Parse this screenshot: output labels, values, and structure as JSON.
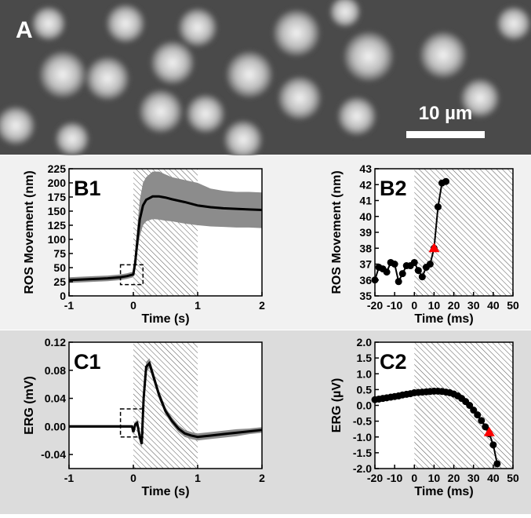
{
  "image": {
    "label": "A",
    "scale_bar_label": "10 µm"
  },
  "chart_data": [
    {
      "type": "line",
      "title": "B1",
      "xlabel": "Time (s)",
      "ylabel": "ROS Movement (nm)",
      "xlim": [
        -1,
        2
      ],
      "xticks": [
        -1,
        0,
        1,
        2
      ],
      "ylim": [
        0,
        225
      ],
      "yticks": [
        0,
        25,
        50,
        75,
        100,
        125,
        150,
        175,
        200,
        225
      ],
      "shaded_x": [
        0,
        1
      ],
      "zoom_box": {
        "x": [
          -0.2,
          0.15
        ],
        "y": [
          20,
          55
        ]
      },
      "x": [
        -1,
        -0.8,
        -0.6,
        -0.4,
        -0.2,
        -0.1,
        0,
        0.03,
        0.06,
        0.1,
        0.15,
        0.2,
        0.3,
        0.4,
        0.5,
        0.6,
        0.8,
        1,
        1.2,
        1.4,
        1.6,
        1.8,
        2
      ],
      "values": [
        28,
        29,
        30,
        31,
        33,
        35,
        38,
        60,
        95,
        135,
        160,
        170,
        176,
        176,
        174,
        171,
        166,
        160,
        157,
        155,
        154,
        153,
        152
      ],
      "upper": [
        33,
        34,
        35,
        36,
        38,
        40,
        43,
        72,
        120,
        170,
        200,
        210,
        220,
        220,
        215,
        210,
        205,
        200,
        190,
        186,
        184,
        184,
        183
      ],
      "lower": [
        23,
        24,
        25,
        26,
        28,
        30,
        33,
        48,
        75,
        105,
        125,
        132,
        136,
        135,
        133,
        132,
        128,
        125,
        123,
        122,
        121,
        121,
        120
      ],
      "color": "#000000",
      "band_color": "#8c8c8c",
      "markers": false
    },
    {
      "type": "line",
      "title": "B2",
      "xlabel": "Time (ms)",
      "ylabel": "ROS Movement (nm)",
      "xlim": [
        -20,
        50
      ],
      "xticks": [
        -20,
        -10,
        0,
        10,
        20,
        30,
        40,
        50
      ],
      "ylim": [
        35,
        43
      ],
      "yticks": [
        35,
        36,
        37,
        38,
        39,
        40,
        41,
        42,
        43
      ],
      "shaded_x": [
        0,
        50
      ],
      "x": [
        -20,
        -18,
        -16,
        -14,
        -12,
        -10,
        -8,
        -6,
        -4,
        -2,
        0,
        2,
        4,
        6,
        8,
        10,
        12,
        14,
        16
      ],
      "values": [
        36.0,
        36.8,
        36.7,
        36.5,
        37.1,
        37.0,
        35.9,
        36.4,
        36.9,
        36.9,
        37.1,
        36.6,
        36.2,
        36.8,
        37.0,
        38.0,
        40.6,
        42.1,
        42.2
      ],
      "color": "#000000",
      "markers": true,
      "onset": {
        "x": 10,
        "y": 38,
        "color": "#ff0000"
      }
    },
    {
      "type": "line",
      "title": "C1",
      "xlabel": "Time (s)",
      "ylabel": "ERG (mV)",
      "xlim": [
        -1,
        2
      ],
      "xticks": [
        -1,
        0,
        1,
        2
      ],
      "ylim": [
        -0.06,
        0.12
      ],
      "yticks": [
        -0.04,
        {
          "value": 0,
          "label": "0.00"
        },
        0.04,
        0.08,
        0.12
      ],
      "shaded_x": [
        0,
        1
      ],
      "zoom_box": {
        "x": [
          -0.2,
          0.15
        ],
        "y": [
          -0.015,
          0.025
        ]
      },
      "x": [
        -1,
        -0.5,
        -0.1,
        -0.02,
        0,
        0.03,
        0.06,
        0.1,
        0.13,
        0.16,
        0.2,
        0.25,
        0.3,
        0.4,
        0.5,
        0.6,
        0.7,
        0.8,
        0.9,
        1,
        1.2,
        1.4,
        1.6,
        1.8,
        2
      ],
      "values": [
        0,
        0,
        0,
        0,
        -0.008,
        0.003,
        0.005,
        -0.015,
        -0.025,
        0.04,
        0.085,
        0.09,
        0.075,
        0.045,
        0.022,
        0.008,
        -0.003,
        -0.01,
        -0.013,
        -0.015,
        -0.013,
        -0.011,
        -0.009,
        -0.007,
        -0.005
      ],
      "upper": [
        0.002,
        0.002,
        0.002,
        0.002,
        -0.004,
        0.007,
        0.009,
        -0.01,
        -0.019,
        0.047,
        0.092,
        0.097,
        0.082,
        0.051,
        0.027,
        0.013,
        0.002,
        -0.005,
        -0.008,
        -0.01,
        -0.008,
        -0.006,
        -0.004,
        -0.003,
        -0.001
      ],
      "lower": [
        -0.002,
        -0.002,
        -0.002,
        -0.002,
        -0.012,
        -0.001,
        0.001,
        -0.02,
        -0.031,
        0.033,
        0.078,
        0.083,
        0.068,
        0.039,
        0.017,
        0.003,
        -0.008,
        -0.015,
        -0.018,
        -0.02,
        -0.018,
        -0.016,
        -0.014,
        -0.011,
        -0.009
      ],
      "color": "#000000",
      "band_color": "#8c8c8c",
      "markers": false
    },
    {
      "type": "line",
      "title": "C2",
      "xlabel": "Time (ms)",
      "ylabel": "ERG (µV)",
      "xlim": [
        -20,
        50
      ],
      "xticks": [
        -20,
        -10,
        0,
        10,
        20,
        30,
        40,
        50
      ],
      "ylim": [
        -2,
        2
      ],
      "yticks": [
        {
          "value": -2,
          "label": "-2.0"
        },
        -1.5,
        {
          "value": -1,
          "label": "-1.0"
        },
        -0.5,
        {
          "value": 0,
          "label": "0.0"
        },
        0.5,
        {
          "value": 1,
          "label": "1.0"
        },
        1.5,
        {
          "value": 2,
          "label": "2.0"
        }
      ],
      "shaded_x": [
        0,
        50
      ],
      "x": [
        -20,
        -18,
        -16,
        -14,
        -12,
        -10,
        -8,
        -6,
        -4,
        -2,
        0,
        2,
        4,
        6,
        8,
        10,
        12,
        14,
        16,
        18,
        20,
        22,
        24,
        26,
        28,
        30,
        32,
        34,
        36,
        38,
        40,
        42
      ],
      "values": [
        0.18,
        0.2,
        0.22,
        0.24,
        0.26,
        0.28,
        0.3,
        0.33,
        0.35,
        0.37,
        0.4,
        0.41,
        0.42,
        0.43,
        0.44,
        0.45,
        0.45,
        0.44,
        0.42,
        0.4,
        0.36,
        0.3,
        0.22,
        0.12,
        0.0,
        -0.15,
        -0.3,
        -0.48,
        -0.68,
        -0.9,
        -1.25,
        -1.85
      ],
      "color": "#000000",
      "markers": true,
      "onset": {
        "x": 38,
        "y": -0.85,
        "color": "#ff0000"
      }
    }
  ]
}
